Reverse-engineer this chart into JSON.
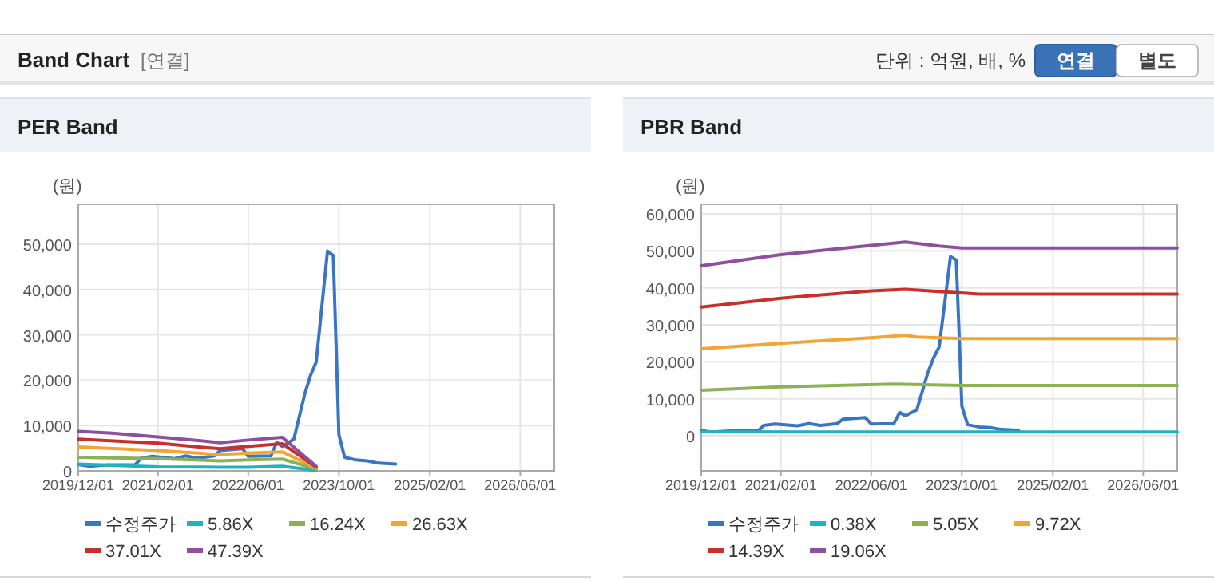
{
  "chart_data": [
    {
      "type": "other",
      "title": "Band Chart",
      "subtitle": "[연결]",
      "annotations": [
        "단위 : 억원, 배, %",
        "연결",
        "별도"
      ]
    },
    {
      "type": "line",
      "title": "PER Band",
      "ylabel": "(원)",
      "grid": true,
      "legend": "bottom",
      "xlim": [
        "2019-12-01",
        "2026-12-01"
      ],
      "ylim": [
        0,
        58800
      ],
      "xticks": [
        {
          "value": "2019-12-01",
          "label": "2019/12/01"
        },
        {
          "value": "2021-02-01",
          "label": "2021/02/01"
        },
        {
          "value": "2022-06-01",
          "label": "2022/06/01"
        },
        {
          "value": "2023-10-01",
          "label": "2023/10/01"
        },
        {
          "value": "2025-02-01",
          "label": "2025/02/01"
        },
        {
          "value": "2026-06-01",
          "label": "2026/06/01"
        }
      ],
      "yticks": [
        0,
        {
          "value": 10000,
          "label": "10,000"
        },
        {
          "value": 20000,
          "label": "20,000"
        },
        {
          "value": 30000,
          "label": "30,000"
        },
        {
          "value": 40000,
          "label": "40,000"
        },
        {
          "value": 50000,
          "label": "50,000"
        }
      ],
      "series": [
        {
          "name": "수정주가",
          "color": "#3a75c4",
          "x": [
            "2019-12",
            "2020-02",
            "2020-05",
            "2020-10",
            "2020-11",
            "2021-01",
            "2021-05",
            "2021-07",
            "2021-09",
            "2021-12",
            "2022-01",
            "2022-05",
            "2022-06",
            "2022-10",
            "2022-11",
            "2022-12",
            "2023-02",
            "2023-04",
            "2023-05",
            "2023-06",
            "2023-07",
            "2023-08",
            "2023-09",
            "2023-10",
            "2023-11",
            "2024-01",
            "2024-03",
            "2024-05",
            "2024-08"
          ],
          "values": [
            1400,
            1000,
            1300,
            1300,
            2800,
            3200,
            2700,
            3300,
            2800,
            3300,
            4500,
            4900,
            3200,
            3300,
            6300,
            5400,
            7000,
            17000,
            21000,
            24000,
            36000,
            48500,
            47500,
            8000,
            3000,
            2400,
            2200,
            1700,
            1500
          ]
        },
        {
          "name": "5.86X",
          "color": "#20b2c0",
          "x": [
            "2019-12",
            "2021-02",
            "2022-01",
            "2022-06",
            "2022-12",
            "2023-06"
          ],
          "values": [
            1500,
            900,
            800,
            800,
            1000,
            100
          ]
        },
        {
          "name": "16.24X",
          "color": "#8db255",
          "x": [
            "2019-12",
            "2021-02",
            "2022-01",
            "2022-06",
            "2022-12",
            "2023-06"
          ],
          "values": [
            3000,
            2700,
            2200,
            2400,
            2600,
            400
          ]
        },
        {
          "name": "26.63X",
          "color": "#f3a534",
          "x": [
            "2019-12",
            "2021-02",
            "2022-01",
            "2022-06",
            "2022-12",
            "2023-06"
          ],
          "values": [
            5300,
            4500,
            3600,
            3900,
            4200,
            600
          ]
        },
        {
          "name": "37.01X",
          "color": "#c9302c",
          "x": [
            "2019-12",
            "2021-02",
            "2021-10",
            "2022-01",
            "2022-06",
            "2022-12",
            "2023-06"
          ],
          "values": [
            7000,
            6100,
            5200,
            4900,
            5400,
            6000,
            800
          ]
        },
        {
          "name": "47.39X",
          "color": "#8e4f9f",
          "x": [
            "2019-12",
            "2020-06",
            "2021-02",
            "2021-10",
            "2022-01",
            "2022-06",
            "2022-12",
            "2023-06"
          ],
          "values": [
            8700,
            8300,
            7500,
            6600,
            6200,
            6800,
            7400,
            1000
          ]
        }
      ]
    },
    {
      "type": "line",
      "title": "PBR Band",
      "ylabel": "(원)",
      "grid": true,
      "legend": "bottom",
      "xlim": [
        "2019-12-01",
        "2026-12-01"
      ],
      "ylim": [
        -9500,
        62600
      ],
      "xticks": [
        {
          "value": "2019-12-01",
          "label": "2019/12/01"
        },
        {
          "value": "2021-02-01",
          "label": "2021/02/01"
        },
        {
          "value": "2022-06-01",
          "label": "2022/06/01"
        },
        {
          "value": "2023-10-01",
          "label": "2023/10/01"
        },
        {
          "value": "2025-02-01",
          "label": "2025/02/01"
        },
        {
          "value": "2026-06-01",
          "label": "2026/06/01"
        }
      ],
      "yticks": [
        0,
        {
          "value": 10000,
          "label": "10,000"
        },
        {
          "value": 20000,
          "label": "20,000"
        },
        {
          "value": 30000,
          "label": "30,000"
        },
        {
          "value": 40000,
          "label": "40,000"
        },
        {
          "value": 50000,
          "label": "50,000"
        },
        {
          "value": 60000,
          "label": "60,000"
        }
      ],
      "series": [
        {
          "name": "수정주가",
          "color": "#3a75c4",
          "x": [
            "2019-12",
            "2020-02",
            "2020-05",
            "2020-10",
            "2020-11",
            "2021-01",
            "2021-05",
            "2021-07",
            "2021-09",
            "2021-12",
            "2022-01",
            "2022-05",
            "2022-06",
            "2022-10",
            "2022-11",
            "2022-12",
            "2023-02",
            "2023-04",
            "2023-05",
            "2023-06",
            "2023-07",
            "2023-08",
            "2023-09",
            "2023-10",
            "2023-11",
            "2024-01",
            "2024-03",
            "2024-05",
            "2024-08"
          ],
          "values": [
            1400,
            1000,
            1300,
            1300,
            2800,
            3200,
            2700,
            3300,
            2800,
            3300,
            4500,
            4900,
            3200,
            3300,
            6300,
            5400,
            7000,
            17000,
            21000,
            24000,
            36000,
            48500,
            47500,
            8000,
            3000,
            2400,
            2200,
            1700,
            1500
          ]
        },
        {
          "name": "0.38X",
          "color": "#20b2c0",
          "x": [
            "2019-12",
            "2022-06",
            "2026-12"
          ],
          "values": [
            1100,
            1000,
            1000
          ]
        },
        {
          "name": "5.05X",
          "color": "#8db255",
          "x": [
            "2019-12",
            "2021-02",
            "2022-10",
            "2023-10",
            "2026-12"
          ],
          "values": [
            12300,
            13200,
            14000,
            13600,
            13600
          ]
        },
        {
          "name": "9.72X",
          "color": "#f3a534",
          "x": [
            "2019-12",
            "2021-02",
            "2022-06",
            "2022-12",
            "2023-02",
            "2023-10",
            "2026-12"
          ],
          "values": [
            23500,
            25000,
            26500,
            27200,
            26700,
            26300,
            26300
          ]
        },
        {
          "name": "14.39X",
          "color": "#c9302c",
          "x": [
            "2019-12",
            "2021-02",
            "2022-06",
            "2022-12",
            "2023-06",
            "2024-01",
            "2026-12"
          ],
          "values": [
            34800,
            37200,
            39200,
            39600,
            39000,
            38300,
            38300
          ]
        },
        {
          "name": "19.06X",
          "color": "#8e4f9f",
          "x": [
            "2019-12",
            "2021-02",
            "2022-06",
            "2022-12",
            "2023-06",
            "2023-10",
            "2026-12"
          ],
          "values": [
            46000,
            49000,
            51500,
            52400,
            51300,
            50800,
            50800
          ]
        }
      ]
    }
  ]
}
